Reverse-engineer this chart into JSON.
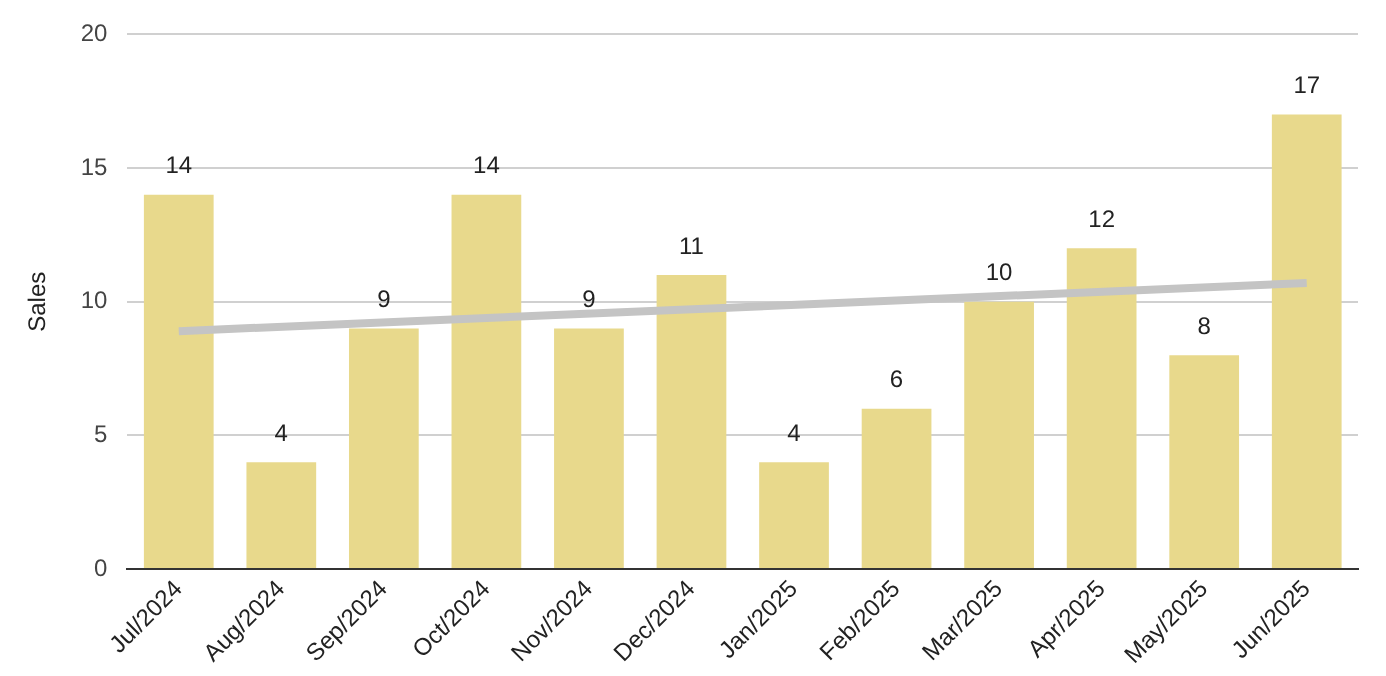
{
  "chart_data": {
    "type": "bar",
    "ylabel": "Sales",
    "categories": [
      "Jul/2024",
      "Aug/2024",
      "Sep/2024",
      "Oct/2024",
      "Nov/2024",
      "Dec/2024",
      "Jan/2025",
      "Feb/2025",
      "Mar/2025",
      "Apr/2025",
      "May/2025",
      "Jun/2025"
    ],
    "series": [
      {
        "color": "#e8d98c",
        "values": [
          14,
          4,
          9,
          14,
          9,
          11,
          4,
          6,
          10,
          12,
          8,
          17
        ],
        "value_labels": [
          "14",
          "4",
          "9",
          "14",
          "9",
          "11",
          "4",
          "6",
          "10",
          "12",
          "8",
          "17"
        ]
      },
      {
        "type": "line",
        "color": "#c4c4c4",
        "x": [
          "Jul/2024",
          "Jun/2025"
        ],
        "values": [
          8.9,
          10.7
        ]
      }
    ],
    "ylim": [
      0,
      20
    ],
    "yticks": [
      0,
      5,
      10,
      15,
      20
    ],
    "grid": "y"
  }
}
